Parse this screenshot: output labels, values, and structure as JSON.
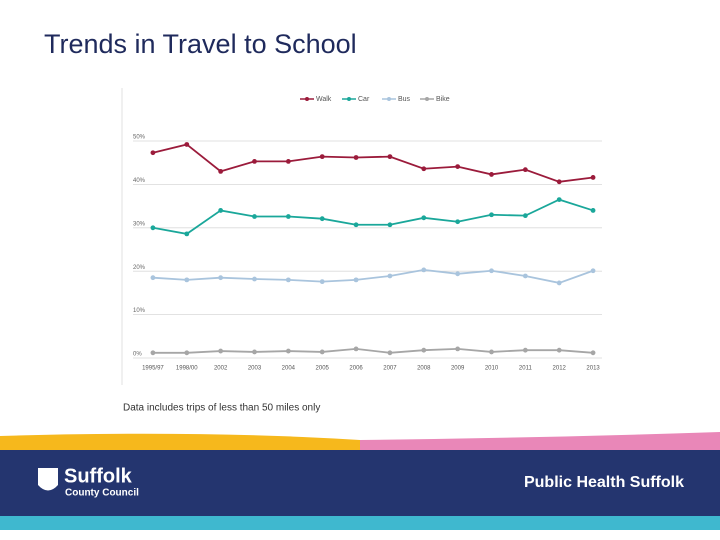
{
  "chart_data": {
    "type": "line",
    "title": "Trends in Travel to School",
    "categories": [
      "1995/97",
      "1998/00",
      "2002",
      "2003",
      "2004",
      "2005",
      "2006",
      "2007",
      "2008",
      "2009",
      "2010",
      "2011",
      "2012",
      "2013"
    ],
    "series": [
      {
        "name": "Walk",
        "color": "#9b1b3b",
        "values": [
          47.3,
          49.2,
          43.0,
          45.3,
          45.3,
          46.4,
          46.2,
          46.4,
          43.6,
          44.1,
          42.3,
          43.4,
          40.6,
          41.6
        ]
      },
      {
        "name": "Car",
        "color": "#1aa79a",
        "values": [
          30.0,
          28.6,
          34.0,
          32.6,
          32.6,
          32.1,
          30.7,
          30.7,
          32.3,
          31.4,
          33.0,
          32.8,
          36.5,
          34.0
        ]
      },
      {
        "name": "Bus",
        "color": "#a9c4dd",
        "values": [
          18.5,
          18.0,
          18.5,
          18.2,
          18.0,
          17.6,
          18.0,
          18.9,
          20.3,
          19.4,
          20.1,
          18.9,
          17.3,
          20.1
        ]
      },
      {
        "name": "Bike",
        "color": "#a6a6a6",
        "values": [
          1.2,
          1.2,
          1.6,
          1.4,
          1.6,
          1.4,
          2.1,
          1.2,
          1.8,
          2.1,
          1.4,
          1.8,
          1.8,
          1.2
        ]
      }
    ],
    "ylim": [
      0,
      50
    ],
    "yticks": [
      {
        "value": 0,
        "label": "0%"
      },
      {
        "value": 10,
        "label": "10%"
      },
      {
        "value": 20,
        "label": "20%"
      },
      {
        "value": 30,
        "label": "30%"
      },
      {
        "value": 40,
        "label": "40%"
      },
      {
        "value": 50,
        "label": "50%"
      }
    ],
    "grid": true,
    "legend": "top",
    "note": "Data includes trips of less than 50 miles only"
  },
  "footer": {
    "logo_name": "Suffolk",
    "logo_sub": "County Council",
    "brand": "Public Health Suffolk"
  }
}
